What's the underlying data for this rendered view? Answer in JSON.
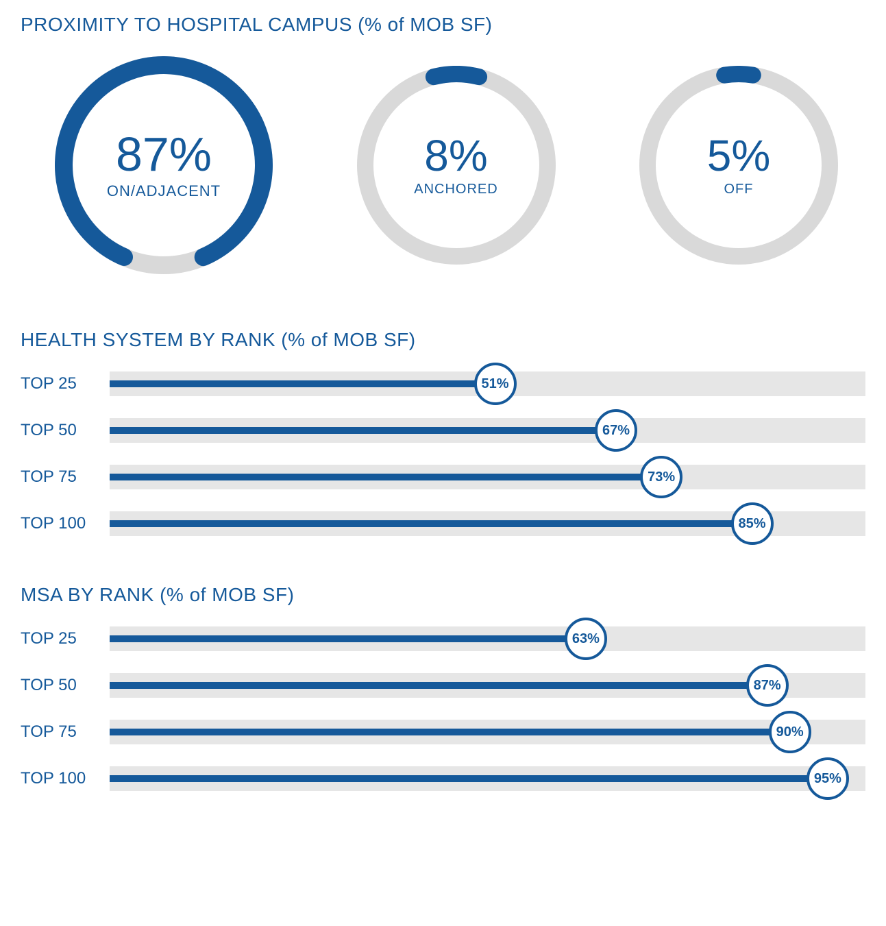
{
  "colors": {
    "primary": "#15599a",
    "track_bg": "#e6e6e6",
    "donut_bg": "#d9d9d9",
    "white": "#ffffff"
  },
  "proximity": {
    "title": "PROXIMITY TO HOSPITAL CAMPUS (% of MOB SF)",
    "title_fontsize": 28,
    "donuts": [
      {
        "value": 87,
        "display": "87%",
        "label": "ON/ADJACENT",
        "size": 318,
        "stroke_width": 26,
        "value_fontsize": 70,
        "label_fontsize": 22
      },
      {
        "value": 8,
        "display": "8%",
        "label": "ANCHORED",
        "size": 290,
        "stroke_width": 24,
        "value_fontsize": 64,
        "label_fontsize": 20
      },
      {
        "value": 5,
        "display": "5%",
        "label": "OFF",
        "size": 290,
        "stroke_width": 24,
        "value_fontsize": 64,
        "label_fontsize": 20
      }
    ],
    "donut_start_angle_deg": -90
  },
  "health_system": {
    "title": "HEALTH SYSTEM BY RANK (% of MOB SF)",
    "bars": [
      {
        "label": "TOP 25",
        "value": 51,
        "display": "51%"
      },
      {
        "label": "TOP 50",
        "value": 67,
        "display": "67%"
      },
      {
        "label": "TOP 75",
        "value": 73,
        "display": "73%"
      },
      {
        "label": "TOP 100",
        "value": 85,
        "display": "85%"
      }
    ]
  },
  "msa": {
    "title": "MSA BY RANK (% of MOB SF)",
    "bars": [
      {
        "label": "TOP 25",
        "value": 63,
        "display": "63%"
      },
      {
        "label": "TOP 50",
        "value": 87,
        "display": "87%"
      },
      {
        "label": "TOP 75",
        "value": 90,
        "display": "90%"
      },
      {
        "label": "TOP 100",
        "value": 95,
        "display": "95%"
      }
    ]
  },
  "bar_style": {
    "track_height": 36,
    "fill_height": 10,
    "endpoint_diameter": 62,
    "endpoint_border_width": 4,
    "endpoint_fontsize": 20,
    "label_fontsize": 24
  }
}
